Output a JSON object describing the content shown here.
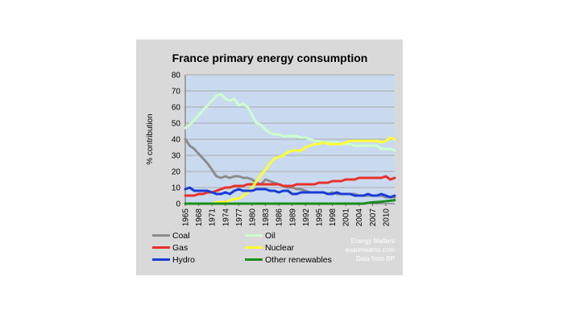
{
  "chart_data": {
    "type": "line",
    "title": "France primary energy consumption",
    "ylabel": "% contribution",
    "xlabel": "",
    "ylim": [
      0,
      80
    ],
    "yticks": [
      0,
      10,
      20,
      30,
      40,
      50,
      60,
      70,
      80
    ],
    "xlim": [
      1965,
      2012
    ],
    "xticks": [
      1965,
      1968,
      1971,
      1974,
      1977,
      1980,
      1983,
      1986,
      1989,
      1992,
      1995,
      1998,
      2001,
      2004,
      2007,
      2010
    ],
    "grid": true,
    "legend_position": "bottom",
    "x": [
      1965,
      1966,
      1967,
      1968,
      1969,
      1970,
      1971,
      1972,
      1973,
      1974,
      1975,
      1976,
      1977,
      1978,
      1979,
      1980,
      1981,
      1982,
      1983,
      1984,
      1985,
      1986,
      1987,
      1988,
      1989,
      1990,
      1991,
      1992,
      1993,
      1994,
      1995,
      1996,
      1997,
      1998,
      1999,
      2000,
      2001,
      2002,
      2003,
      2004,
      2005,
      2006,
      2007,
      2008,
      2009,
      2010,
      2011,
      2012
    ],
    "series": [
      {
        "name": "Coal",
        "color": "#8c8c8c",
        "values": [
          40,
          36,
          34,
          31,
          28,
          25,
          21,
          17,
          16,
          17,
          16,
          17,
          17,
          16,
          16,
          15,
          13,
          12,
          15,
          14,
          13,
          12,
          11,
          10,
          10,
          9,
          9,
          8,
          7,
          7,
          7,
          7,
          6,
          7,
          6,
          6,
          6,
          6,
          6,
          5,
          5,
          5,
          5,
          5,
          5,
          4,
          4,
          4
        ]
      },
      {
        "name": "Oil",
        "color": "#ccffcc",
        "values": [
          47,
          49,
          52,
          55,
          58,
          61,
          64,
          67,
          68,
          65,
          64,
          65,
          61,
          62,
          60,
          55,
          50,
          49,
          46,
          44,
          43,
          43,
          42,
          42,
          42,
          42,
          41,
          41,
          40,
          39,
          39,
          38,
          38,
          38,
          38,
          37,
          37,
          37,
          36,
          36,
          36,
          36,
          36,
          36,
          34,
          34,
          34,
          33
        ]
      },
      {
        "name": "Gas",
        "color": "#e8302a",
        "values": [
          5,
          5,
          5,
          6,
          6,
          7,
          7,
          8,
          9,
          10,
          10,
          11,
          11,
          11,
          12,
          12,
          12,
          12,
          12,
          12,
          12,
          12,
          11,
          11,
          11,
          12,
          12,
          12,
          12,
          12,
          13,
          13,
          13,
          14,
          14,
          14,
          15,
          15,
          15,
          16,
          16,
          16,
          16,
          16,
          16,
          17,
          15,
          16
        ]
      },
      {
        "name": "Nuclear",
        "color": "#ffff33",
        "values": [
          0,
          0,
          0,
          0,
          0,
          0,
          0,
          1,
          1,
          1,
          2,
          3,
          3,
          5,
          7,
          10,
          14,
          18,
          21,
          25,
          28,
          29,
          30,
          32,
          33,
          33,
          33,
          35,
          36,
          37,
          37,
          38,
          37,
          37,
          37,
          37,
          38,
          39,
          39,
          39,
          39,
          39,
          39,
          39,
          38,
          39,
          41,
          40
        ]
      },
      {
        "name": "Hydro",
        "color": "#1a3bd6",
        "values": [
          9,
          10,
          8,
          8,
          8,
          8,
          7,
          6,
          6,
          7,
          6,
          8,
          9,
          8,
          8,
          8,
          9,
          9,
          9,
          8,
          8,
          7,
          8,
          8,
          6,
          6,
          7,
          7,
          7,
          7,
          7,
          7,
          6,
          6,
          7,
          6,
          6,
          6,
          5,
          5,
          5,
          6,
          5,
          5,
          6,
          5,
          4,
          5
        ]
      },
      {
        "name": "Other renewables",
        "color": "#1a8c1a",
        "values": [
          0,
          0,
          0,
          0,
          0,
          0,
          0,
          0,
          0,
          0,
          0,
          0,
          0,
          0,
          0,
          0,
          0,
          0,
          0,
          0,
          0,
          0,
          0,
          0,
          0,
          0,
          0,
          0,
          0,
          0,
          0,
          0,
          0,
          0,
          0,
          0,
          0,
          0,
          0,
          0,
          0,
          0.5,
          0.8,
          1,
          1.2,
          1.5,
          1.8,
          2.2
        ]
      }
    ]
  },
  "credit": [
    "Energy Matters",
    "euanmearns.com",
    "Data from BP"
  ]
}
